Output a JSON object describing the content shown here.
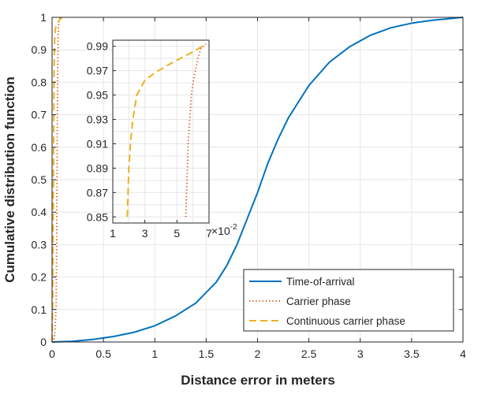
{
  "chart_data": {
    "type": "line",
    "xlabel": "Distance error in meters",
    "ylabel": "Cumulative distribution function",
    "xlim": [
      0,
      4
    ],
    "ylim": [
      0,
      1
    ],
    "grid": true,
    "x_ticks": [
      "0",
      "0.5",
      "1",
      "1.5",
      "2",
      "2.5",
      "3",
      "3.5",
      "4"
    ],
    "y_ticks": [
      "0",
      "0.1",
      "0.2",
      "0.3",
      "0.4",
      "0.5",
      "0.6",
      "0.7",
      "0.8",
      "0.9",
      "1"
    ],
    "legend_position": "bottom-right",
    "series": [
      {
        "name": "Time-of-arrival",
        "color": "#0072BD",
        "style": "solid",
        "points": [
          [
            0,
            0
          ],
          [
            0.2,
            0.002
          ],
          [
            0.4,
            0.008
          ],
          [
            0.6,
            0.017
          ],
          [
            0.8,
            0.03
          ],
          [
            1.0,
            0.05
          ],
          [
            1.2,
            0.08
          ],
          [
            1.4,
            0.12
          ],
          [
            1.6,
            0.185
          ],
          [
            1.7,
            0.235
          ],
          [
            1.8,
            0.3
          ],
          [
            1.9,
            0.38
          ],
          [
            2.0,
            0.46
          ],
          [
            2.1,
            0.55
          ],
          [
            2.2,
            0.625
          ],
          [
            2.3,
            0.69
          ],
          [
            2.5,
            0.79
          ],
          [
            2.7,
            0.862
          ],
          [
            2.9,
            0.91
          ],
          [
            3.1,
            0.945
          ],
          [
            3.3,
            0.968
          ],
          [
            3.5,
            0.982
          ],
          [
            3.7,
            0.991
          ],
          [
            3.9,
            0.997
          ],
          [
            4.0,
            1.0
          ]
        ]
      },
      {
        "name": "Carrier phase",
        "color": "#D95319",
        "style": "dotted",
        "points": [
          [
            0,
            0
          ],
          [
            0.01,
            0.002
          ],
          [
            0.02,
            0.01
          ],
          [
            0.03,
            0.04
          ],
          [
            0.04,
            0.12
          ],
          [
            0.045,
            0.3
          ],
          [
            0.05,
            0.6
          ],
          [
            0.055,
            0.85
          ],
          [
            0.06,
            0.95
          ],
          [
            0.065,
            0.98
          ],
          [
            0.07,
            0.995
          ],
          [
            0.08,
            1.0
          ]
        ]
      },
      {
        "name": "Continuous carrier phase",
        "color": "#EDB120",
        "style": "dashed",
        "points": [
          [
            0,
            0
          ],
          [
            0.005,
            0.1
          ],
          [
            0.01,
            0.35
          ],
          [
            0.015,
            0.6
          ],
          [
            0.02,
            0.85
          ],
          [
            0.025,
            0.93
          ],
          [
            0.03,
            0.96
          ],
          [
            0.04,
            0.975
          ],
          [
            0.05,
            0.98
          ],
          [
            0.06,
            0.985
          ],
          [
            0.07,
            0.99
          ],
          [
            0.08,
            0.995
          ],
          [
            0.1,
            1.0
          ]
        ]
      }
    ],
    "inset": {
      "xlim": [
        1,
        7
      ],
      "ylim": [
        0.845,
        0.995
      ],
      "x_ticks": [
        "1",
        "3",
        "5",
        "7"
      ],
      "x_tick_values": [
        1,
        3,
        5,
        7
      ],
      "x_multiplier": "×10",
      "x_multiplier_exponent": "-2",
      "y_ticks": [
        "0.85",
        "0.87",
        "0.89",
        "0.91",
        "0.93",
        "0.95",
        "0.97",
        "0.99"
      ],
      "y_tick_values": [
        0.85,
        0.87,
        0.89,
        0.91,
        0.93,
        0.95,
        0.97,
        0.99
      ],
      "series": [
        {
          "name": "Carrier phase",
          "color": "#D95319",
          "style": "dotted",
          "points": [
            [
              5.55,
              0.85
            ],
            [
              5.6,
              0.87
            ],
            [
              5.65,
              0.89
            ],
            [
              5.7,
              0.91
            ],
            [
              5.8,
              0.93
            ],
            [
              5.9,
              0.95
            ],
            [
              6.0,
              0.96
            ],
            [
              6.15,
              0.97
            ],
            [
              6.3,
              0.98
            ],
            [
              6.5,
              0.988
            ],
            [
              6.8,
              0.992
            ]
          ]
        },
        {
          "name": "Continuous carrier phase",
          "color": "#EDB120",
          "style": "dashed",
          "points": [
            [
              1.9,
              0.85
            ],
            [
              1.95,
              0.87
            ],
            [
              2.0,
              0.89
            ],
            [
              2.1,
              0.91
            ],
            [
              2.25,
              0.93
            ],
            [
              2.5,
              0.95
            ],
            [
              3.0,
              0.962
            ],
            [
              3.6,
              0.968
            ],
            [
              4.5,
              0.975
            ],
            [
              5.2,
              0.98
            ],
            [
              5.8,
              0.984
            ],
            [
              6.2,
              0.987
            ],
            [
              6.6,
              0.99
            ],
            [
              6.8,
              0.992
            ]
          ]
        }
      ]
    }
  }
}
